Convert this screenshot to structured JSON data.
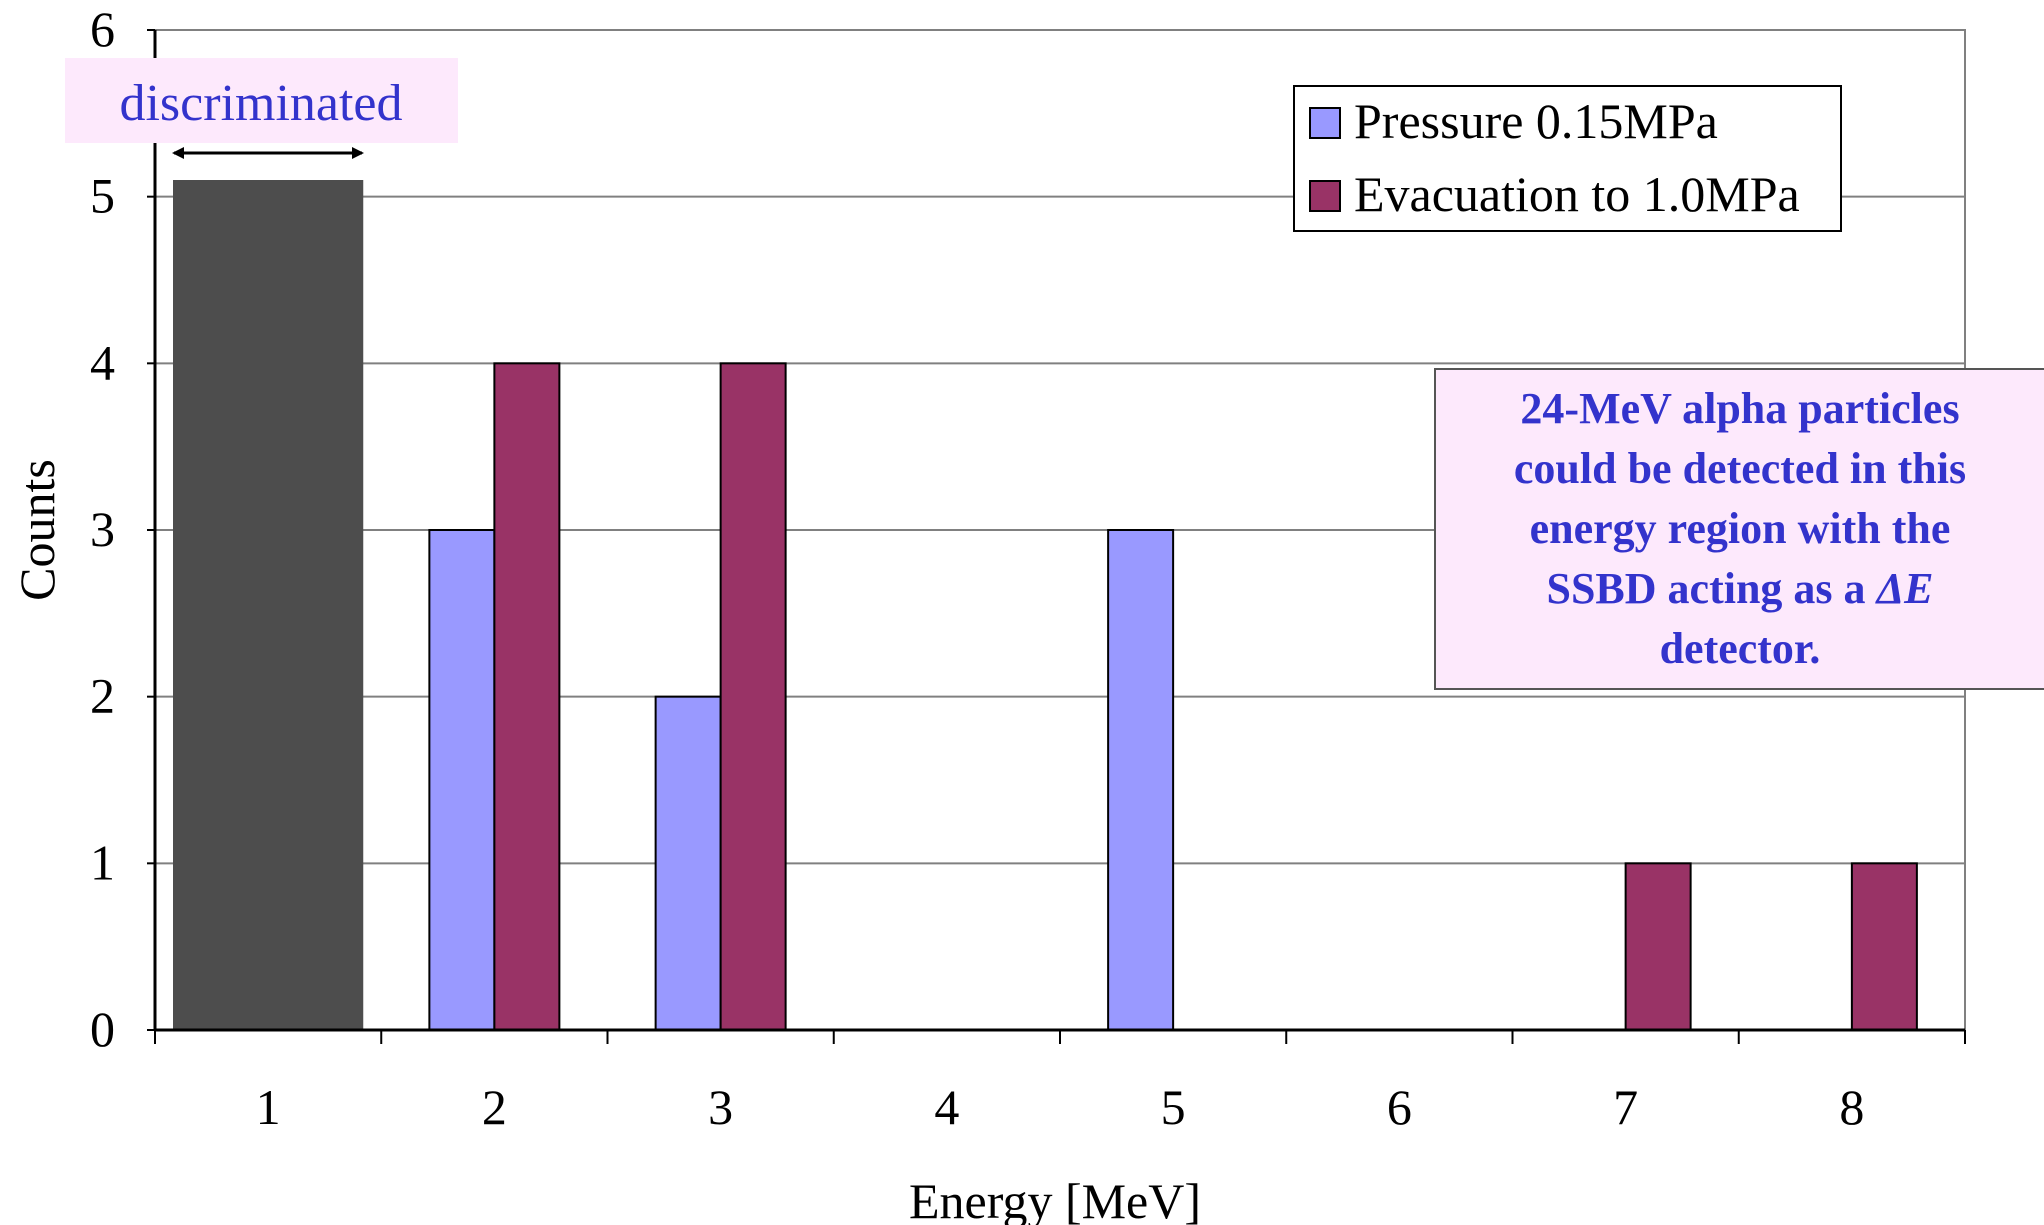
{
  "chart_data": {
    "type": "bar",
    "categories": [
      "1",
      "2",
      "3",
      "4",
      "5",
      "6",
      "7",
      "8"
    ],
    "series": [
      {
        "name": "Pressure 0.15MPa",
        "color": "#9999ff",
        "values": [
          0,
          3,
          2,
          0,
          3,
          0,
          0,
          0
        ]
      },
      {
        "name": "Evacuation to 1.0MPa",
        "color": "#993366",
        "values": [
          0,
          4,
          4,
          0,
          0,
          0,
          1,
          1
        ]
      }
    ],
    "xlabel": "Energy [MeV]",
    "ylabel": "Counts",
    "ylim": [
      0,
      6
    ],
    "yticks": [
      "0",
      "1",
      "2",
      "3",
      "4",
      "5",
      "6"
    ],
    "grid": true,
    "legend_position": "top-right",
    "discriminated_region": {
      "label": "discriminated",
      "from_category": "1",
      "level": 5.1,
      "color": "#4d4d4d"
    },
    "annotation": {
      "lines": [
        "24-MeV alpha particles",
        "could be detected in this",
        "energy region with the",
        "SSBD acting as a ",
        "detector."
      ],
      "symbol": "ΔE"
    }
  }
}
